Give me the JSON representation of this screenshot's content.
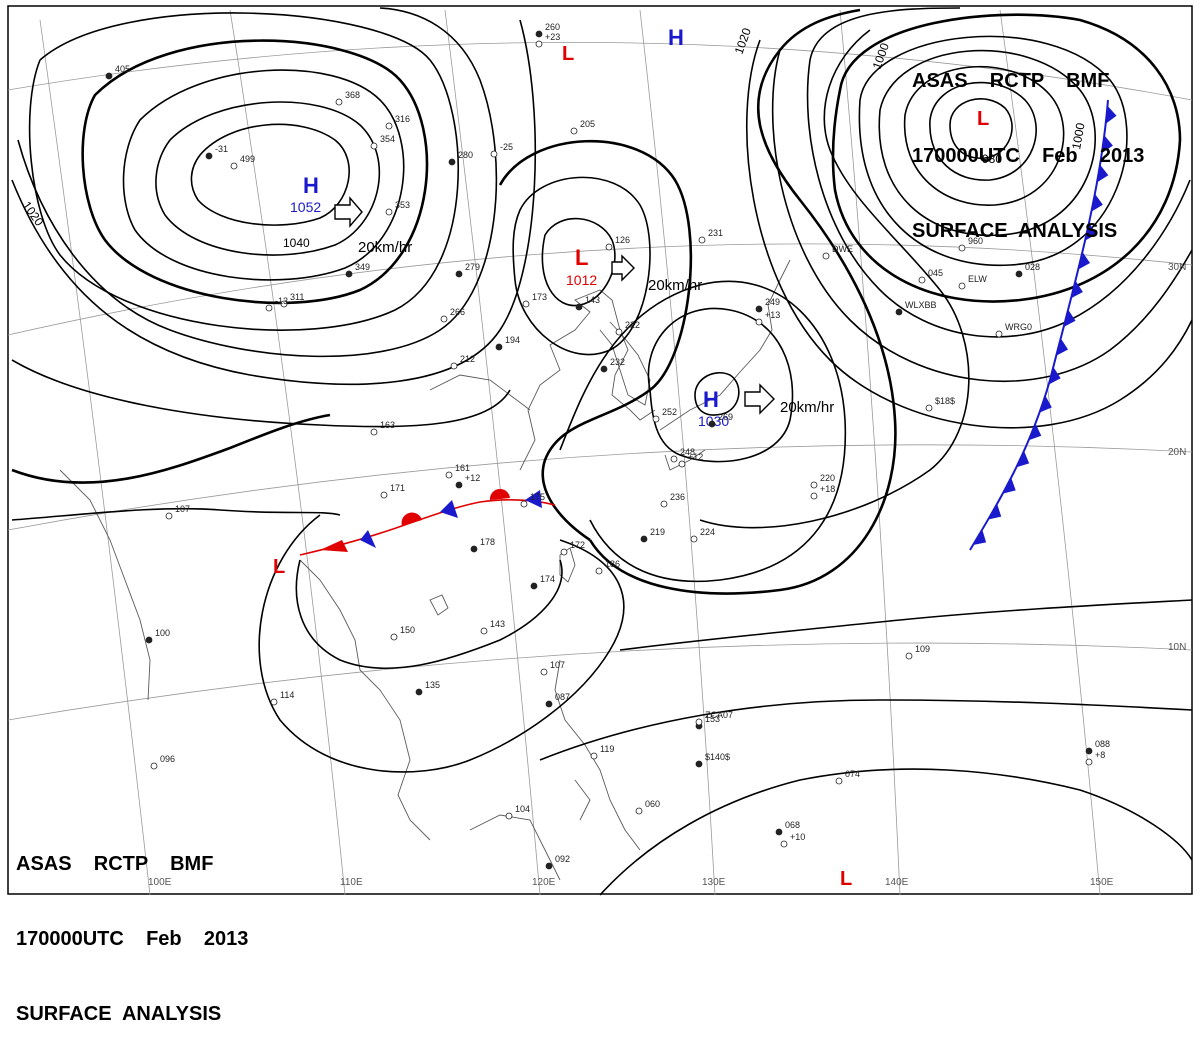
{
  "header": {
    "line1": "ASAS    RCTP    BMF",
    "line2": "170000UTC    Feb    2013",
    "line3": "SURFACE  ANALYSIS"
  },
  "colors": {
    "high": "#1a1acc",
    "low": "#e00000",
    "isobar": "#000000",
    "grid": "#999999",
    "coast": "#555555",
    "cold_front": "#1a1acc",
    "warm_front": "#e00000"
  },
  "highs": [
    {
      "letter": "H",
      "pressure": "1052",
      "motion": "20km/hr"
    },
    {
      "letter": "H",
      "pressure": "1030",
      "motion": "20km/hr"
    },
    {
      "letter": "H",
      "pressure": ""
    }
  ],
  "lows": [
    {
      "letter": "L",
      "pressure": "1012",
      "motion": "20km/hr"
    },
    {
      "letter": "L",
      "pressure": ""
    },
    {
      "letter": "L",
      "pressure": ""
    },
    {
      "letter": "L",
      "pressure": ""
    },
    {
      "letter": "L",
      "pressure": ""
    }
  ],
  "isobar_labels": [
    "1040",
    "1020",
    "1020",
    "1000",
    "1000",
    "980"
  ],
  "longitudes": [
    "100E",
    "110E",
    "120E",
    "130E",
    "140E",
    "150E"
  ],
  "latitudes": [
    "30N",
    "20N",
    "10N"
  ],
  "fronts": {
    "cold_front_east": "cold",
    "stationary_front": "stationary"
  },
  "station_obs": [
    "405",
    "368",
    "316",
    "280",
    "-25",
    "499",
    "-31",
    "354",
    "353",
    "349",
    "311",
    "-13",
    "279",
    "266",
    "212",
    "194",
    "163",
    "173",
    "143",
    "126",
    "205",
    "260",
    "+23",
    "222",
    "232",
    "248",
    "252",
    "269",
    "+12",
    "231",
    "249",
    "+13",
    "161",
    "+12",
    "171",
    "175",
    "178",
    "172",
    "186",
    "174",
    "150",
    "143",
    "135",
    "114",
    "107",
    "100",
    "096",
    "107",
    "087",
    "119",
    "104",
    "092",
    "060",
    "109",
    "153",
    "220",
    "+18",
    "068",
    "+10",
    "074",
    "088",
    "+8",
    "960",
    "028",
    "045",
    "ZCA07",
    "$140$",
    "$18$",
    "WRG0",
    "WLXBB",
    "ELW",
    "DWE",
    "219",
    "236",
    "224"
  ]
}
